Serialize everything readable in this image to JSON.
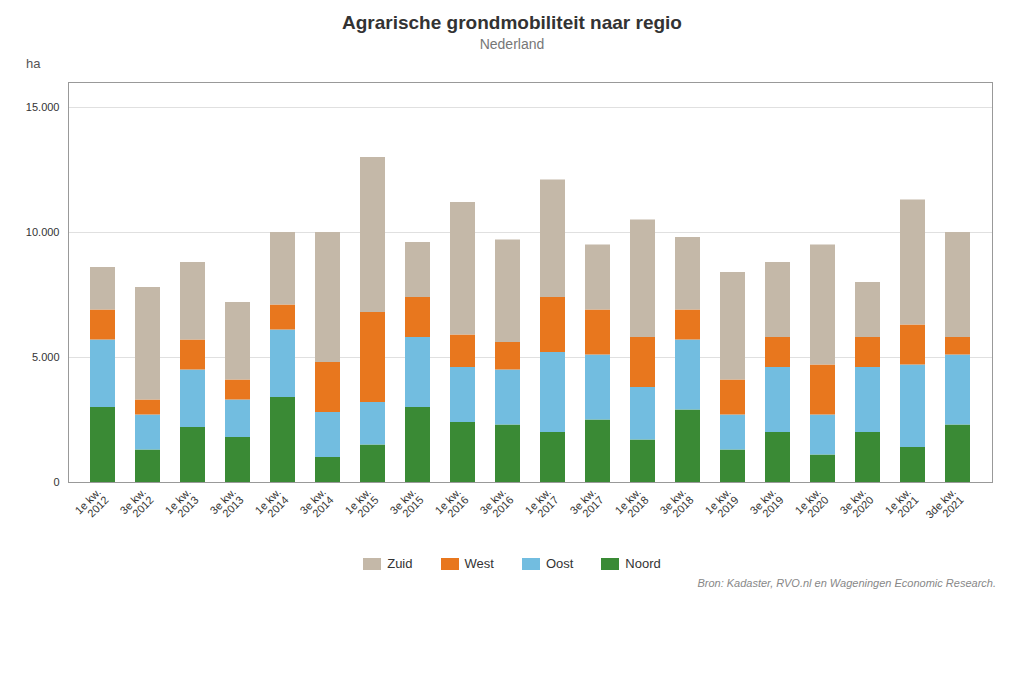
{
  "chart_data": {
    "type": "bar",
    "stacked": true,
    "title": "Agrarische grondmobiliteit naar regio",
    "subtitle": "Nederland",
    "ylabel": "ha",
    "source": "Bron: Kadaster, RVO.nl en Wageningen Economic Research.",
    "categories": [
      "1e kw.\n2012",
      "3e kw.\n2012",
      "1e kw.\n2013",
      "3e kw.\n2013",
      "1e kw.\n2014",
      "3e kw.\n2014",
      "1e kw.\n2015",
      "3e kw.\n2015",
      "1e kw.\n2016",
      "3e kw.\n2016",
      "1e kw.\n2017",
      "3e kw.\n2017",
      "1e kw.\n2018",
      "3e kw.\n2018",
      "1e kw.\n2019",
      "3e kw.\n2019",
      "1e kw.\n2020",
      "3e kw.\n2020",
      "1e kw.\n2021",
      "3de kw.\n2021"
    ],
    "series": [
      {
        "name": "Noord",
        "color": "#3a8a35",
        "values": [
          3000,
          1300,
          2200,
          1800,
          3400,
          1000,
          1500,
          3000,
          2400,
          2300,
          2000,
          2500,
          1700,
          2900,
          1300,
          2000,
          1100,
          2000,
          1400,
          2300
        ]
      },
      {
        "name": "Oost",
        "color": "#72bde0",
        "values": [
          2700,
          1400,
          2300,
          1500,
          2700,
          1800,
          1700,
          2800,
          2200,
          2200,
          3200,
          2600,
          2100,
          2800,
          1400,
          2600,
          1600,
          2600,
          3300,
          2800
        ]
      },
      {
        "name": "West",
        "color": "#e8771e",
        "values": [
          1200,
          600,
          1200,
          800,
          1000,
          2000,
          3600,
          1600,
          1300,
          1100,
          2200,
          1800,
          2000,
          1200,
          1400,
          1200,
          2000,
          1200,
          1600,
          700
        ]
      },
      {
        "name": "Zuid",
        "color": "#c4b8a8",
        "values": [
          1700,
          4500,
          3100,
          3100,
          2900,
          5200,
          6200,
          2200,
          5300,
          4100,
          4700,
          2600,
          4700,
          2900,
          4300,
          3000,
          4800,
          2200,
          5000,
          4200
        ]
      }
    ],
    "ylim": [
      0,
      16000
    ],
    "yticks": [
      0,
      {
        "value": 5000,
        "label": "5.000"
      },
      {
        "value": 10000,
        "label": "10.000"
      },
      {
        "value": 15000,
        "label": "15.000"
      }
    ],
    "grid": true,
    "legend": "bottom"
  }
}
